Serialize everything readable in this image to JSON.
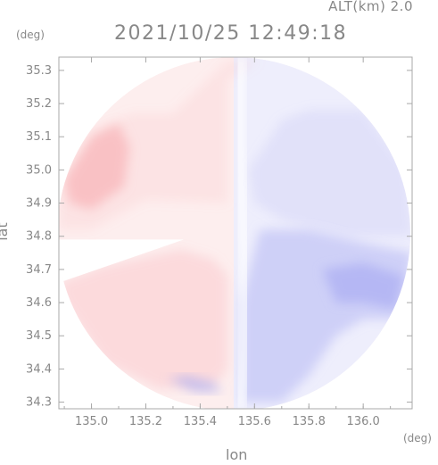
{
  "header": {
    "altitude": "ALT(km) 2.0",
    "timestamp": "2021/10/25 12:49:18"
  },
  "chart_data": {
    "type": "heatmap",
    "title": "2021/10/25 12:49:18",
    "subtitle": "ALT(km) 2.0",
    "xlabel": "lon",
    "ylabel": "lat",
    "xunit": "(deg)",
    "yunit": "(deg)",
    "xlim": [
      134.88,
      136.18
    ],
    "ylim": [
      34.28,
      35.34
    ],
    "xticks": [
      "135.0",
      "135.2",
      "135.4",
      "135.6",
      "135.8",
      "136.0"
    ],
    "yticks": [
      "34.3",
      "34.4",
      "34.5",
      "34.6",
      "34.7",
      "34.8",
      "34.9",
      "35.0",
      "35.1",
      "35.2",
      "35.3"
    ],
    "grid": false,
    "colors": {
      "positive": "#f7a0a6",
      "neutral": "#ffffff",
      "negative": "#a8aaf2",
      "frame": "#a8a8a8"
    },
    "regions": [
      {
        "kind": "positive",
        "strength": 0.25,
        "polygon": [
          [
            134.88,
            34.66
          ],
          [
            135.05,
            34.71
          ],
          [
            135.33,
            34.76
          ],
          [
            135.45,
            34.73
          ],
          [
            135.5,
            34.68
          ],
          [
            135.5,
            34.4
          ],
          [
            135.45,
            34.35
          ],
          [
            135.25,
            34.34
          ],
          [
            135.05,
            34.42
          ],
          [
            134.9,
            34.6
          ]
        ]
      },
      {
        "kind": "positive",
        "strength": 0.15,
        "polygon": [
          [
            134.88,
            34.82
          ],
          [
            135.0,
            34.82
          ],
          [
            135.2,
            34.91
          ],
          [
            135.5,
            34.9
          ],
          [
            135.5,
            35.27
          ],
          [
            135.62,
            35.33
          ],
          [
            135.5,
            35.33
          ],
          [
            135.3,
            35.17
          ],
          [
            135.15,
            35.17
          ],
          [
            135.0,
            35.12
          ],
          [
            134.88,
            34.97
          ]
        ]
      },
      {
        "kind": "positive",
        "strength": 0.5,
        "polygon": [
          [
            134.9,
            34.97
          ],
          [
            135.0,
            35.1
          ],
          [
            135.1,
            35.14
          ],
          [
            135.14,
            35.07
          ],
          [
            135.12,
            34.95
          ],
          [
            135.0,
            34.88
          ],
          [
            134.92,
            34.9
          ]
        ]
      },
      {
        "kind": "negative",
        "strength": 0.2,
        "polygon": [
          [
            135.58,
            35.0
          ],
          [
            135.7,
            35.15
          ],
          [
            135.8,
            35.18
          ],
          [
            136.0,
            35.18
          ],
          [
            136.16,
            35.0
          ],
          [
            136.18,
            34.8
          ],
          [
            135.95,
            34.8
          ],
          [
            135.7,
            34.85
          ],
          [
            135.6,
            34.9
          ]
        ]
      },
      {
        "kind": "negative",
        "strength": 0.45,
        "polygon": [
          [
            135.62,
            34.82
          ],
          [
            135.8,
            34.82
          ],
          [
            136.0,
            34.78
          ],
          [
            136.18,
            34.75
          ],
          [
            136.15,
            34.55
          ],
          [
            136.0,
            34.55
          ],
          [
            135.9,
            34.5
          ],
          [
            135.8,
            34.38
          ],
          [
            135.7,
            34.3
          ],
          [
            135.55,
            34.3
          ],
          [
            135.55,
            34.6
          ]
        ]
      },
      {
        "kind": "negative",
        "strength": 0.65,
        "polygon": [
          [
            135.85,
            34.7
          ],
          [
            136.0,
            34.72
          ],
          [
            136.15,
            34.68
          ],
          [
            136.12,
            34.58
          ],
          [
            136.0,
            34.6
          ],
          [
            135.9,
            34.6
          ]
        ]
      },
      {
        "kind": "negative",
        "strength": 0.6,
        "polygon": [
          [
            135.28,
            34.37
          ],
          [
            135.38,
            34.33
          ],
          [
            135.48,
            34.33
          ],
          [
            135.45,
            34.36
          ],
          [
            135.35,
            34.38
          ]
        ]
      }
    ]
  }
}
